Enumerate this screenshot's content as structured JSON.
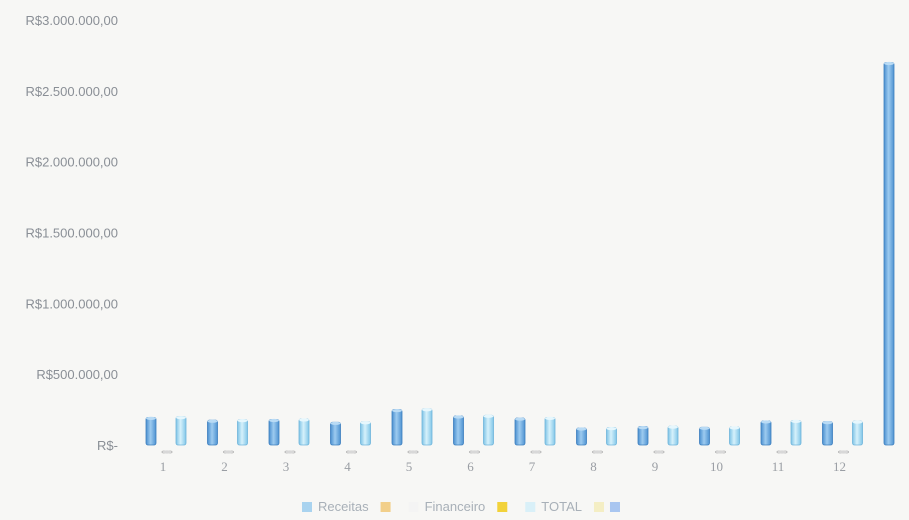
{
  "chart_data": {
    "type": "bar",
    "title": "",
    "xlabel": "",
    "ylabel": "",
    "categories": [
      "1",
      "2",
      "3",
      "4",
      "5",
      "6",
      "7",
      "8",
      "9",
      "10",
      "11",
      "12",
      ""
    ],
    "y_tick_labels": [
      "R$-",
      "R$500.000,00",
      "R$1.000.000,00",
      "R$1.500.000,00",
      "R$2.000.000,00",
      "R$2.500.000,00",
      "R$3.000.000,00"
    ],
    "y_tick_values": [
      0,
      500000,
      1000000,
      1500000,
      2000000,
      2500000,
      3000000
    ],
    "ylim": [
      0,
      3000000
    ],
    "grid": false,
    "legend_position": "bottom",
    "series": [
      {
        "name": "Receitas",
        "color": "#6aa6dc",
        "values": [
          195000,
          175000,
          180000,
          160000,
          250000,
          205000,
          190000,
          120000,
          130000,
          125000,
          170000,
          165000,
          2700000
        ]
      },
      {
        "name": "Financeiro",
        "color": "#c9c9c9",
        "values": [
          5000,
          4000,
          4000,
          4000,
          6000,
          5000,
          5000,
          3000,
          3000,
          3000,
          4000,
          4000,
          60000
        ]
      },
      {
        "name": "TOTAL",
        "color": "#a9dcef",
        "values": [
          200000,
          179000,
          184000,
          164000,
          256000,
          210000,
          195000,
          123000,
          133000,
          128000,
          174000,
          169000,
          2760000
        ]
      }
    ],
    "legend": [
      {
        "label": "Receitas",
        "swatch_before": "#a9d3ef",
        "swatch_after": "#f2cf8a"
      },
      {
        "label": "Financeiro",
        "swatch_before": "#f4f4f4",
        "swatch_after": "#f2d23a"
      },
      {
        "label": "TOTAL",
        "swatch_before": "#d9f0f8",
        "swatch_after": "#f4eec4"
      }
    ],
    "legend_trailing_swatch": "#a9c6f0"
  }
}
